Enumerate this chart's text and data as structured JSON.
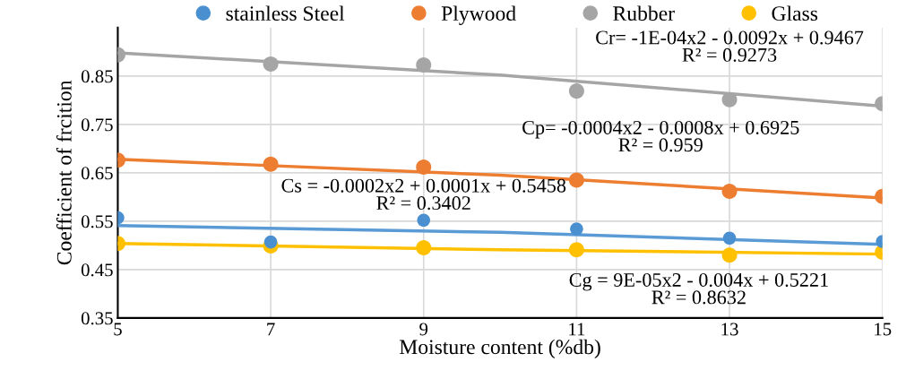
{
  "chart_data": {
    "type": "scatter",
    "xlabel": "Moisture content (%db)",
    "ylabel": "Coefficient of frcition",
    "x": [
      5,
      7,
      9,
      11,
      13,
      15
    ],
    "series": [
      {
        "name": "stainless Steel",
        "color": "#4a90d0",
        "values": [
          0.557,
          0.507,
          0.552,
          0.534,
          0.515,
          0.508
        ]
      },
      {
        "name": "Plywood",
        "color": "#ed7d31",
        "values": [
          0.676,
          0.668,
          0.662,
          0.635,
          0.612,
          0.601
        ]
      },
      {
        "name": "Rubber",
        "color": "#a5a5a5",
        "values": [
          0.894,
          0.875,
          0.873,
          0.819,
          0.801,
          0.793
        ]
      },
      {
        "name": "Glass",
        "color": "#ffc000",
        "values": [
          0.504,
          0.499,
          0.495,
          0.491,
          0.48,
          0.486
        ]
      },
      {
        "type": "line",
        "marker": "none",
        "color": "#5b9bd5",
        "x": [
          5,
          10,
          15
        ],
        "values": [
          0.541,
          0.527,
          0.502
        ]
      },
      {
        "type": "line",
        "marker": "none",
        "color": "#ed7d31",
        "x": [
          5,
          10,
          15
        ],
        "values": [
          0.678,
          0.645,
          0.598
        ]
      },
      {
        "type": "line",
        "marker": "none",
        "color": "#a5a5a5",
        "x": [
          5,
          10,
          15
        ],
        "values": [
          0.898,
          0.852,
          0.788
        ]
      },
      {
        "type": "line",
        "marker": "none",
        "color": "#ffc000",
        "x": [
          5,
          10,
          15
        ],
        "values": [
          0.504,
          0.491,
          0.482
        ]
      }
    ],
    "annotations": [
      "Cr= -1E-04x2 - 0.0092x + 0.9467\nR² = 0.9273",
      "Cp= -0.0004x2 - 0.0008x + 0.6925\nR² = 0.959",
      "Cs = -0.0002x2 + 0.0001x + 0.5458\nR² = 0.3402",
      "Cg = 9E-05x2 - 0.004x + 0.5221\nR² = 0.8632"
    ],
    "xlim": [
      5,
      15
    ],
    "xticks": [
      5,
      7,
      9,
      11,
      13,
      15
    ],
    "ylim": [
      0.35,
      0.95
    ],
    "yticks": [
      0.35,
      0.45,
      0.55,
      0.65,
      0.75,
      0.85
    ],
    "grid": true,
    "legend": "top",
    "marker": "circle",
    "line_style": "solid"
  }
}
